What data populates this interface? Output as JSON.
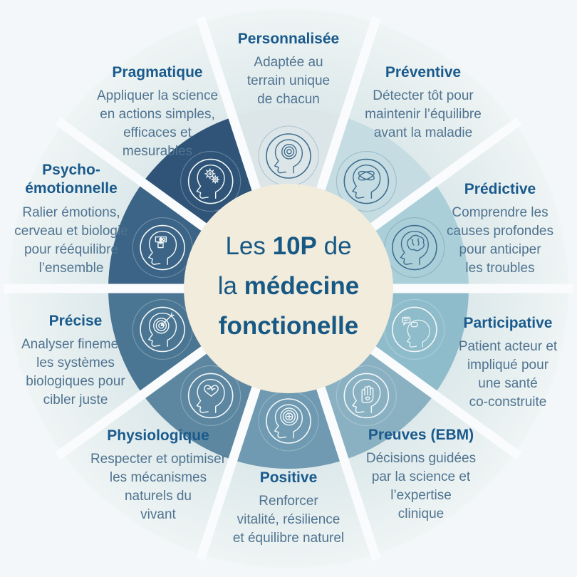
{
  "background_color": "#f4f7f9",
  "center": {
    "circle_color": "#f2ecdd",
    "text_color": "#175984",
    "line1": {
      "pre": "Les ",
      "bold": "10P",
      "post": " de"
    },
    "line2": {
      "pre": "la ",
      "bold": "médecine",
      "post": ""
    },
    "line3": {
      "pre": "",
      "bold": "fonctionelle",
      "post": ""
    }
  },
  "styles": {
    "title_color": "#1a5a8c",
    "desc_color": "#4f7390",
    "spoke_color": "#f9fbfc",
    "outer_gradient_inner": "#cfe0e3",
    "outer_gradient_outer": "#f0f5f5",
    "icon_dark_stroke": "#3f6e8e",
    "icon_light_stroke": "#f3f8f9"
  },
  "segments": [
    {
      "title": "Personnalisée",
      "desc": [
        "Adaptée au",
        "terrain unique",
        "de chacun"
      ],
      "inner_color": "#dce6e8",
      "icon": "head-target-icon",
      "icon_stroke": "dark"
    },
    {
      "title": "Préventive",
      "desc": [
        "Détecter tôt pour",
        "maintenir l’équilibre",
        "avant la maladie"
      ],
      "inner_color": "#c4dce2",
      "icon": "head-orbits-icon",
      "icon_stroke": "dark"
    },
    {
      "title": "Prédictive",
      "desc": [
        "Comprendre les",
        "causes profondes",
        "pour anticiper",
        "les troubles"
      ],
      "inner_color": "#aacfd9",
      "icon": "head-brain-icon",
      "icon_stroke": "dark"
    },
    {
      "title": "Participative",
      "desc": [
        "Patient acteur et",
        "impliqué pour",
        "une santé",
        "co-construite"
      ],
      "inner_color": "#8fbccb",
      "icon": "head-speech-bubbles-icon",
      "icon_stroke": "light"
    },
    {
      "title": "Preuves (EBM)",
      "desc": [
        "Décisions guidées",
        "par la science et",
        "l’expertise",
        "clinique"
      ],
      "inner_color": "#8ab1c2",
      "icon": "head-hand-heart-icon",
      "icon_stroke": "light"
    },
    {
      "title": "Positive",
      "desc": [
        "Renforcer",
        "vitalité, résilience",
        "et équilibre naturel"
      ],
      "inner_color": "#6f9ab1",
      "icon": "head-plus-target-icon",
      "icon_stroke": "light"
    },
    {
      "title": "Physiologique",
      "desc": [
        "Respecter et optimiser",
        "les mécanismes",
        "naturels du",
        "vivant"
      ],
      "inner_color": "#5d87a1",
      "icon": "head-heart-icon",
      "icon_stroke": "light"
    },
    {
      "title": "Précise",
      "desc": [
        "Analyser finement",
        "les systèmes",
        "biologiques pour",
        "cibler juste"
      ],
      "inner_color": "#4b7693",
      "icon": "head-dart-target-icon",
      "icon_stroke": "light"
    },
    {
      "title": "Psycho-émotionnelle",
      "desc": [
        "Ralier émotions,",
        "cerveau et biologie",
        "pour rééquilibre",
        "l’ensemble"
      ],
      "inner_color": "#3c6486",
      "icon": "head-puzzle-icon",
      "icon_stroke": "light"
    },
    {
      "title": "Pragmatique",
      "desc": [
        "Appliquer la science",
        "en actions simples,",
        "efficaces et",
        "mesurables"
      ],
      "inner_color": "#2f5478",
      "icon": "head-gears-icon",
      "icon_stroke": "light"
    }
  ]
}
